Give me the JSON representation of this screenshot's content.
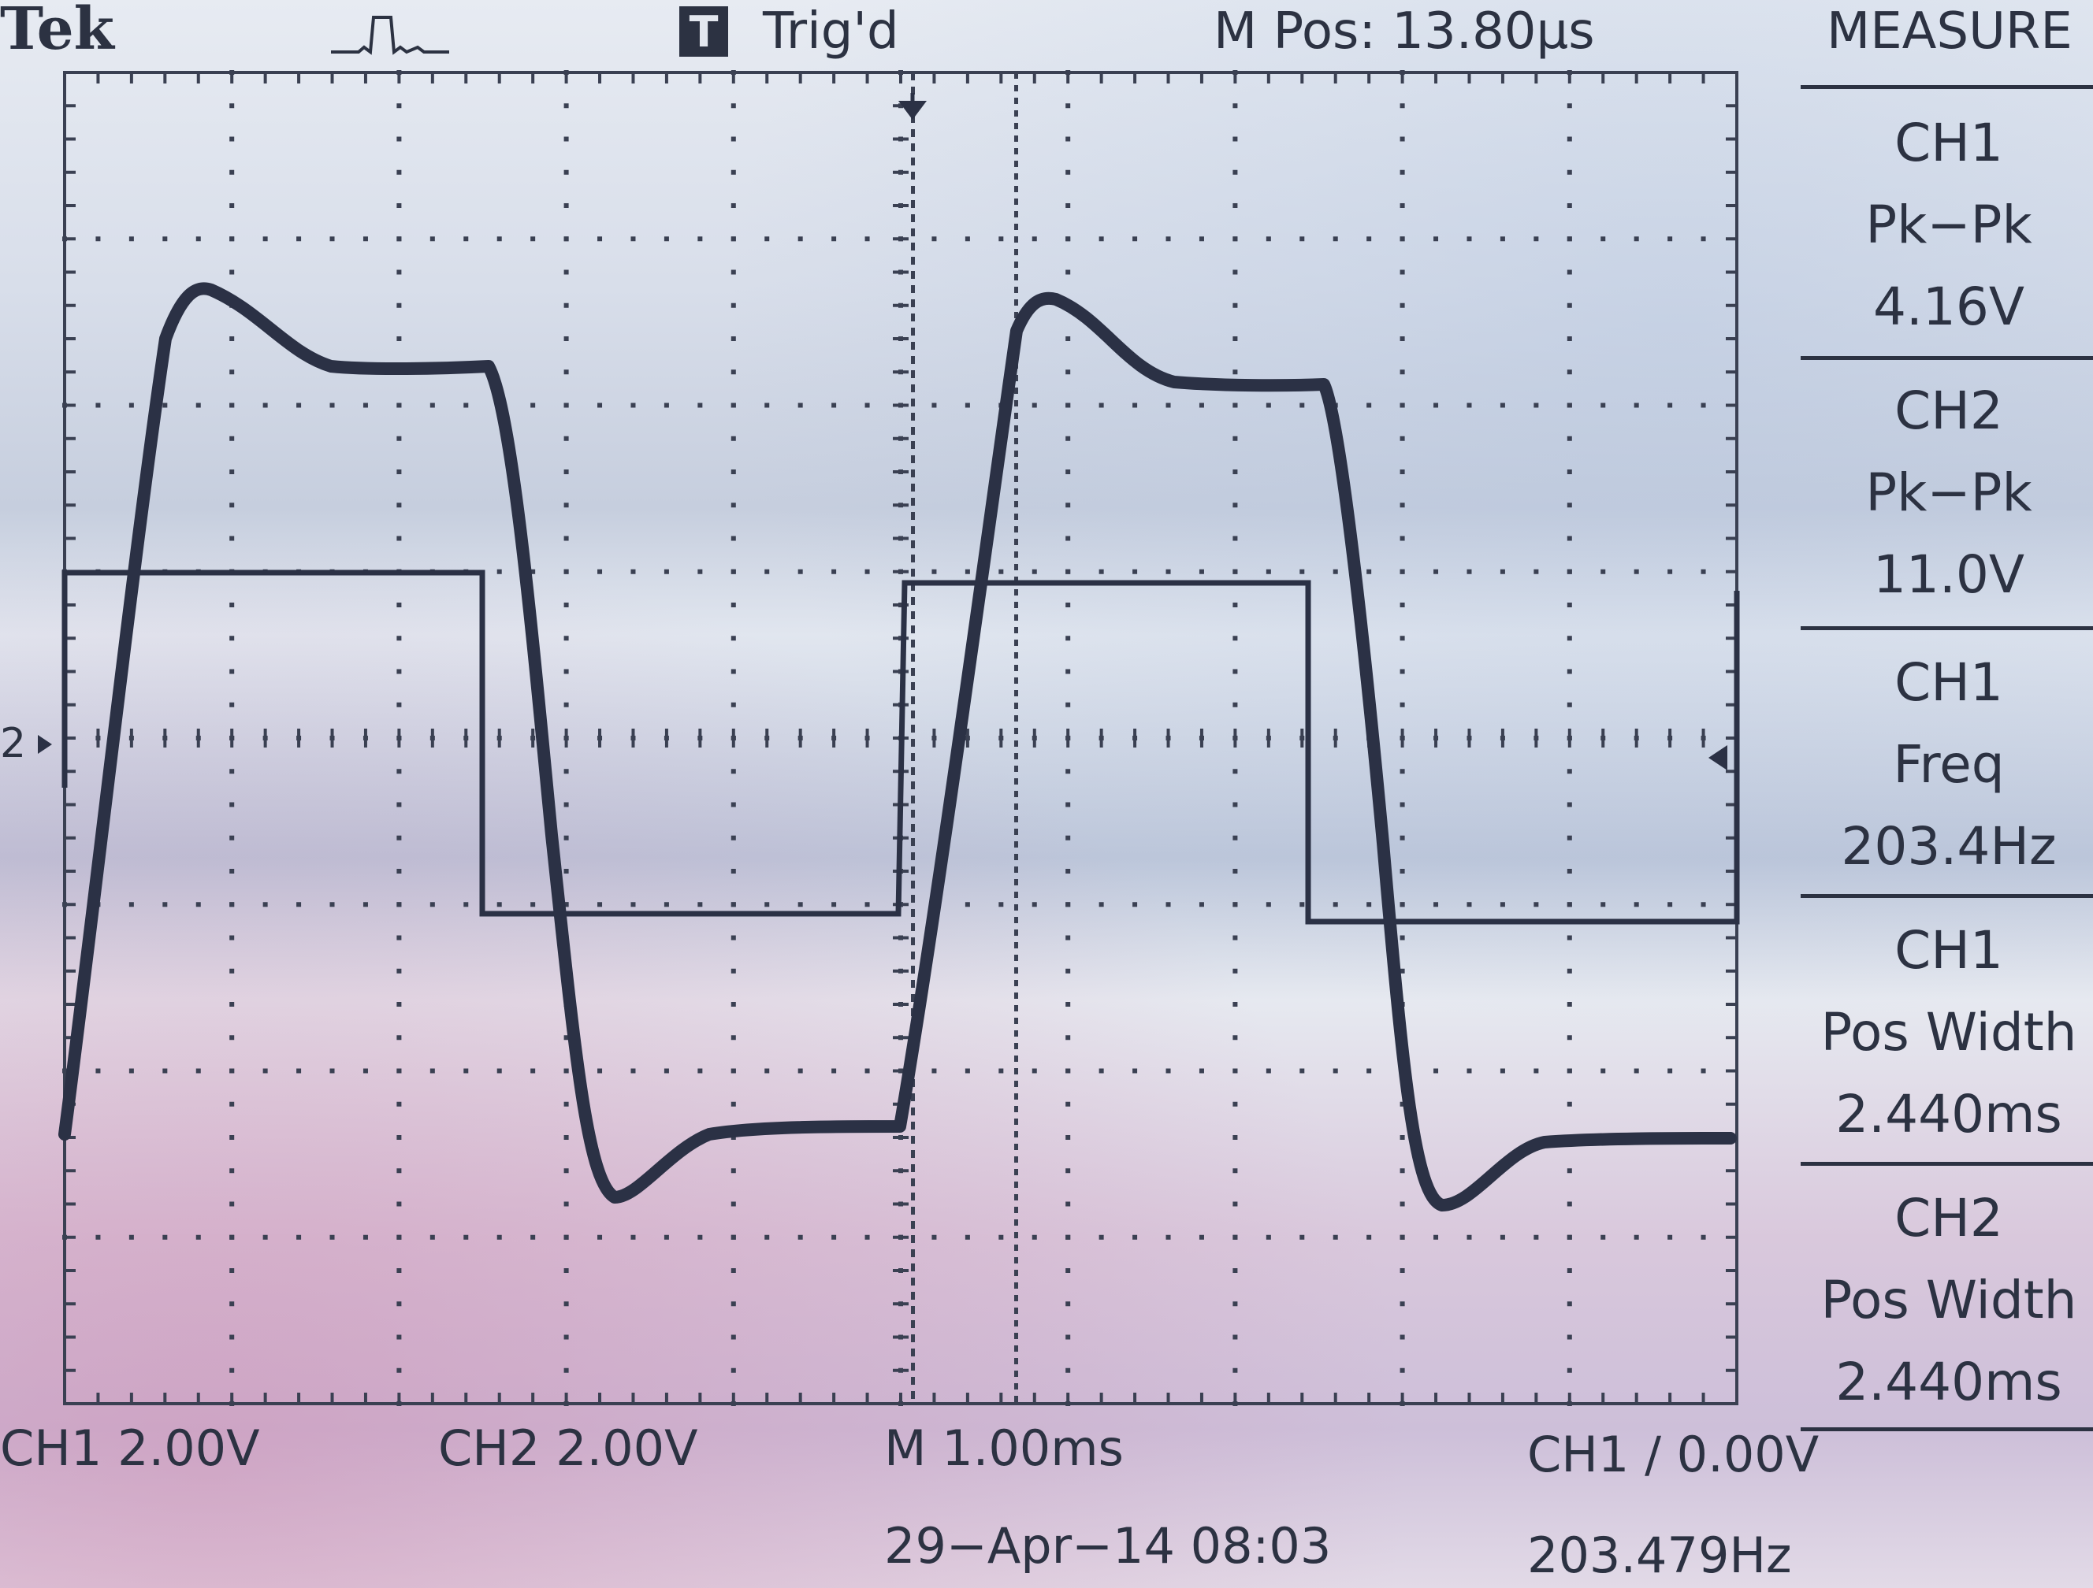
{
  "header": {
    "brand": "Tek",
    "acquire_icon": "acquisition-pulse-icon",
    "trigger_badge": "T",
    "trigger_status": "Trig'd",
    "main_position": "M Pos: 13.80µs",
    "menu_title": "MEASURE"
  },
  "measurements": [
    {
      "source": "CH1",
      "type": "Pk−Pk",
      "value": "4.16V"
    },
    {
      "source": "CH2",
      "type": "Pk−Pk",
      "value": "11.0V"
    },
    {
      "source": "CH1",
      "type": "Freq",
      "value": "203.4Hz"
    },
    {
      "source": "CH1",
      "type": "Pos Width",
      "value": "2.440ms"
    },
    {
      "source": "CH2",
      "type": "Pos Width",
      "value": "2.440ms"
    }
  ],
  "footer": {
    "ch1_scale": "CH1  2.00V",
    "ch2_scale": "CH2  2.00V",
    "timebase": "M 1.00ms",
    "trigger_info": "CH1 ∕ 0.00V",
    "date_time": "29−Apr−14 08:03",
    "trigger_freq": "203.479Hz"
  },
  "markers": {
    "ch2_ground": "2",
    "trigger_position_icon": "trigger-position-marker-icon",
    "trigger_level_icon": "trigger-level-marker-icon"
  },
  "colors": {
    "trace": "#2b3145",
    "graticule": "#3a4052"
  }
}
